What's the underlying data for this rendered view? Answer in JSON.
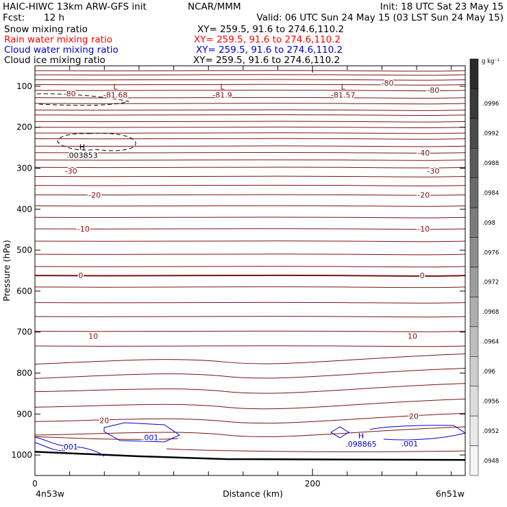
{
  "header": {
    "model": "HAIC-HIWC 13km ARW-GFS init",
    "org": "NCAR/MMM",
    "init": "Init: 18 UTC Sat 23 May 15",
    "fcst_label": "Fcst:",
    "fcst_value": "12 h",
    "valid": "Valid: 06 UTC Sun 24 May 15 (03 LST Sun 24 May 15)"
  },
  "fields": [
    {
      "name": "Snow mixing ratio",
      "xy": "XY= 259.5, 91.6 to 274.6,110.2",
      "color": "#000000"
    },
    {
      "name": "Rain water mixing ratio",
      "xy": "XY= 259.5, 91.6 to 274.6,110.2",
      "color": "#ff0000"
    },
    {
      "name": "Cloud water mixing ratio",
      "xy": "XY= 259.5, 91.6 to 274.6,110.2",
      "color": "#0000cc"
    },
    {
      "name": "Cloud ice mixing ratio",
      "xy": "XY= 259.5, 91.6 to 274.6,110.2",
      "color": "#000000"
    }
  ],
  "colors": {
    "temperature": "#7a1010",
    "cloud_water": "#0000cc",
    "snow": "#000000",
    "frame": "#000000"
  },
  "axes": {
    "ylabel": "Pressure (hPa)",
    "xlabel": "Distance (km)",
    "left_loc": "4n53w",
    "right_loc": "6n51w"
  },
  "colorbar": {
    "unit": "g kg⁻¹",
    "labels": [
      ".0996",
      ".0992",
      ".0988",
      ".0984",
      ".098",
      ".0976",
      ".0972",
      ".0968",
      ".0964",
      ".096",
      ".0956",
      ".0952",
      ".0948"
    ],
    "shades": [
      "#2b2b2b",
      "#3a3a3a",
      "#4a4a4a",
      "#5a5a5a",
      "#6a6a6a",
      "#7b7b7b",
      "#8c8c8c",
      "#9c9c9c",
      "#adadad",
      "#bdbdbd",
      "#cdcdcd",
      "#dcdcdc",
      "#e9e9e9",
      "#f5f5f5"
    ]
  },
  "chart_data": {
    "type": "contour",
    "title": "",
    "xlabel": "Distance (km)",
    "ylabel": "Pressure (hPa)",
    "xlim": [
      0,
      310
    ],
    "ylim": [
      1050,
      50
    ],
    "xticks": [
      0,
      200
    ],
    "yticks": [
      100,
      200,
      300,
      400,
      500,
      600,
      700,
      800,
      900,
      1000
    ],
    "temperature_contours": [
      {
        "level": -80,
        "labels": [
          {
            "text": "-80",
            "x": 25,
            "p": 118
          },
          {
            "text": "-80",
            "x": 254,
            "p": 92
          },
          {
            "text": "-80",
            "x": 287,
            "p": 109
          }
        ]
      },
      {
        "level": -40,
        "labels": [
          {
            "text": "-40",
            "x": 280,
            "p": 262
          }
        ]
      },
      {
        "level": -30,
        "labels": [
          {
            "text": "-30",
            "x": 26,
            "p": 307
          },
          {
            "text": "-30",
            "x": 287,
            "p": 307
          }
        ]
      },
      {
        "level": -20,
        "labels": [
          {
            "text": "-20",
            "x": 43,
            "p": 365
          },
          {
            "text": "-20",
            "x": 280,
            "p": 365
          }
        ]
      },
      {
        "level": -10,
        "labels": [
          {
            "text": "-10",
            "x": 35,
            "p": 448
          },
          {
            "text": "-10",
            "x": 280,
            "p": 448
          }
        ]
      },
      {
        "level": 0,
        "labels": [
          {
            "text": "0",
            "x": 33,
            "p": 562
          },
          {
            "text": "0",
            "x": 279,
            "p": 562
          }
        ]
      },
      {
        "level": 10,
        "labels": [
          {
            "text": "10",
            "x": 42,
            "p": 710
          },
          {
            "text": "10",
            "x": 272,
            "p": 710
          }
        ]
      },
      {
        "level": 20,
        "labels": [
          {
            "text": "20",
            "x": 50,
            "p": 915
          },
          {
            "text": "20",
            "x": 273,
            "p": 905
          }
        ]
      }
    ],
    "extrema": [
      {
        "type": "L",
        "value": "-81.68",
        "x": 58,
        "p": 108
      },
      {
        "type": "L",
        "value": "-81.9",
        "x": 135,
        "p": 108
      },
      {
        "type": "L",
        "value": "-81.57",
        "x": 222,
        "p": 108
      },
      {
        "type": "H",
        "value": ".003853",
        "x": 34,
        "p": 255,
        "field": "snow"
      },
      {
        "type": "H",
        "value": ".098865",
        "x": 235,
        "p": 960,
        "field": "cloud_water"
      }
    ],
    "cloud_water_labels": [
      {
        "text": ".001",
        "x": 25,
        "p": 980
      },
      {
        "text": ".001",
        "x": 83,
        "p": 957
      },
      {
        "text": ".001",
        "x": 270,
        "p": 972
      }
    ]
  }
}
